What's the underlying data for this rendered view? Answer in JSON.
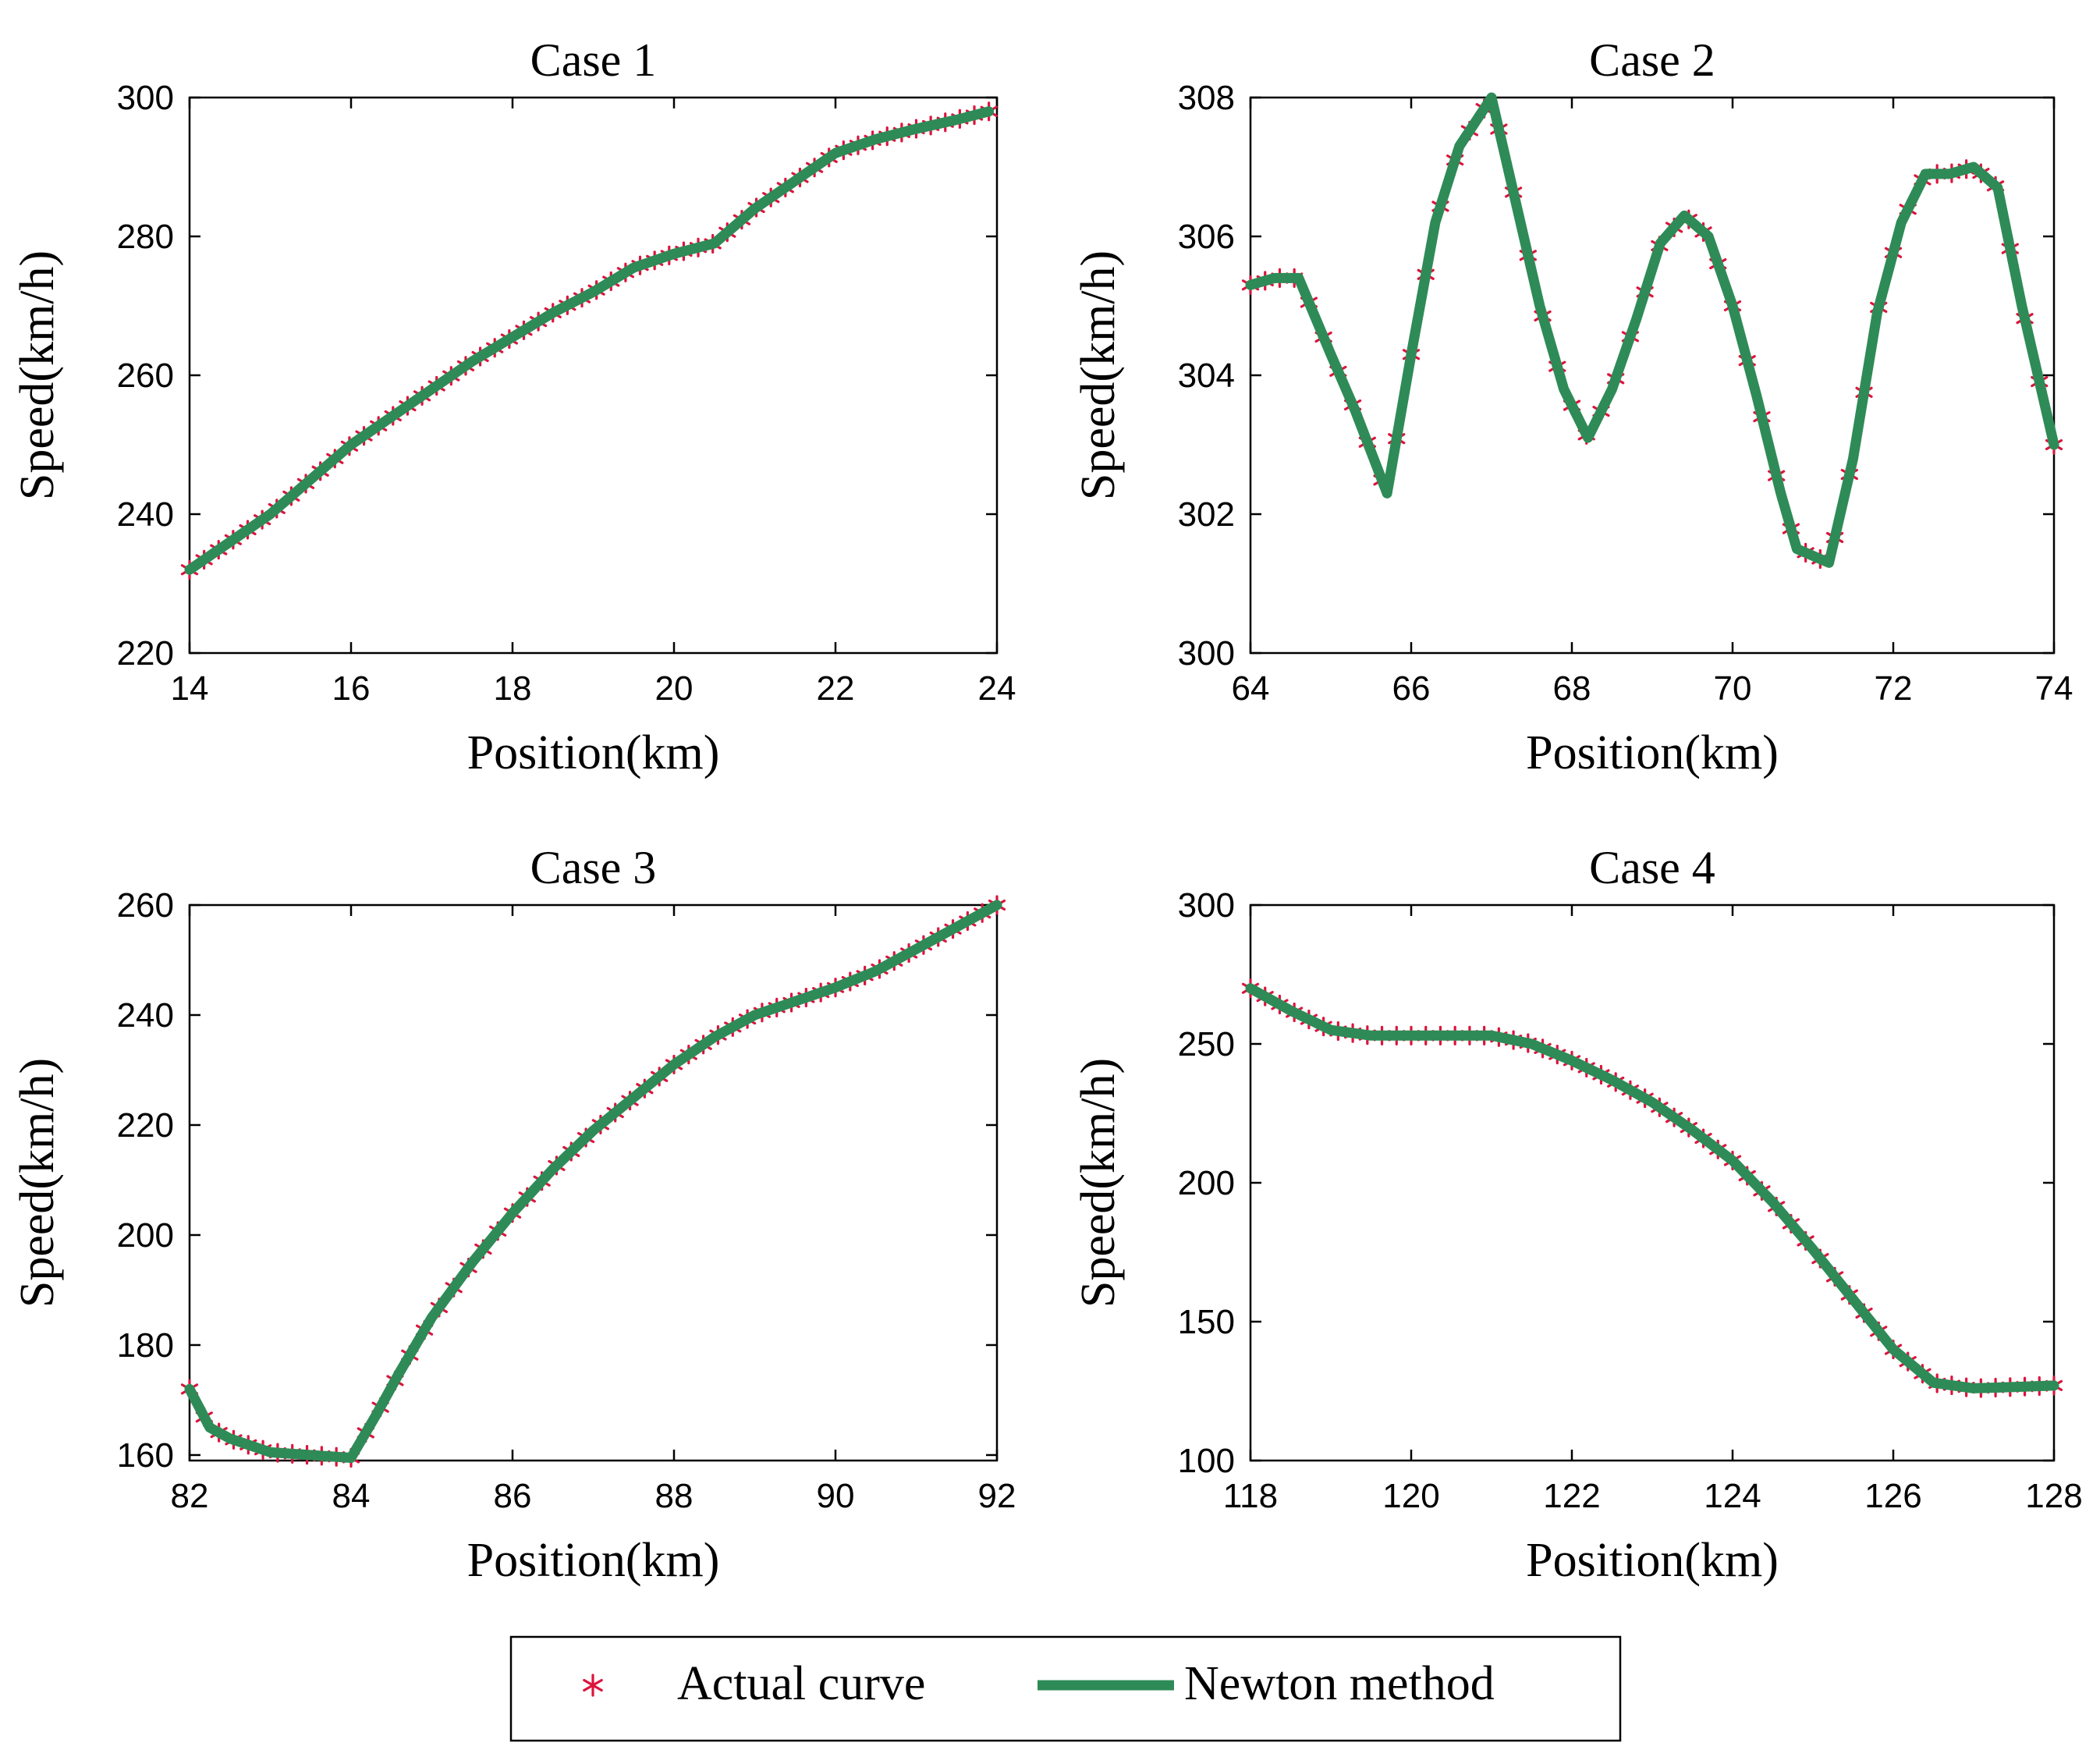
{
  "colors": {
    "actual": "#dc143c",
    "newton": "#2e8b57",
    "axes": "#000000"
  },
  "legend": {
    "actual_label": "Actual curve",
    "newton_label": "Newton method",
    "placement": "bottom-center"
  },
  "chart_data": [
    {
      "type": "line",
      "title": "Case 1",
      "xlabel": "Position(km)",
      "ylabel": "Speed(km/h)",
      "xlim": [
        14,
        24
      ],
      "ylim": [
        220,
        300
      ],
      "xticks": [
        14,
        16,
        18,
        20,
        22,
        24
      ],
      "yticks": [
        220,
        240,
        260,
        280,
        300
      ],
      "grid": false,
      "series": [
        {
          "name": "Actual curve",
          "marker": "asterisk",
          "x": [
            14,
            14.5,
            15,
            15.5,
            16,
            16.5,
            17,
            17.5,
            18,
            18.5,
            19,
            19.5,
            20,
            20.5,
            21,
            21.5,
            22,
            22.5,
            23,
            23.5,
            23.9
          ],
          "y": [
            232,
            236,
            240,
            245,
            250,
            254,
            258,
            262,
            265.5,
            269,
            272,
            275.5,
            277.5,
            279,
            284,
            288,
            292,
            294,
            295.5,
            296.8,
            298
          ]
        },
        {
          "name": "Newton method",
          "marker": "line",
          "x": [
            14,
            14.5,
            15,
            15.5,
            16,
            16.5,
            17,
            17.5,
            18,
            18.5,
            19,
            19.5,
            20,
            20.5,
            21,
            21.5,
            22,
            22.5,
            23,
            23.5,
            23.9
          ],
          "y": [
            232,
            236,
            240,
            245,
            250,
            254,
            258,
            262,
            265.5,
            269,
            272,
            275.5,
            277.5,
            279,
            284,
            288,
            292,
            294,
            295.5,
            296.8,
            298
          ]
        }
      ]
    },
    {
      "type": "line",
      "title": "Case 2",
      "xlabel": "Position(km)",
      "ylabel": "Speed(km/h)",
      "xlim": [
        64,
        74
      ],
      "ylim": [
        300,
        308
      ],
      "xticks": [
        64,
        66,
        68,
        70,
        72,
        74
      ],
      "yticks": [
        300,
        302,
        304,
        306,
        308
      ],
      "grid": false,
      "series": [
        {
          "name": "Actual curve",
          "marker": "asterisk",
          "x": [
            64,
            64.3,
            64.6,
            65.0,
            65.3,
            65.7,
            66.0,
            66.3,
            66.6,
            67.0,
            67.3,
            67.6,
            67.9,
            68.2,
            68.5,
            68.8,
            69.1,
            69.4,
            69.7,
            70.0,
            70.3,
            70.6,
            70.8,
            71.2,
            71.5,
            71.8,
            72.1,
            72.4,
            72.7,
            73.0,
            73.3,
            73.6,
            74.0
          ],
          "y": [
            305.3,
            305.4,
            305.4,
            304.3,
            303.5,
            302.3,
            304.3,
            306.2,
            307.3,
            308.0,
            306.5,
            305.0,
            303.8,
            303.1,
            303.8,
            304.8,
            305.9,
            306.3,
            306.0,
            305.0,
            303.7,
            302.3,
            301.5,
            301.3,
            302.8,
            304.9,
            306.2,
            306.9,
            306.9,
            307.0,
            306.7,
            305.0,
            303.0
          ]
        },
        {
          "name": "Newton method",
          "marker": "line",
          "x": [
            64,
            64.3,
            64.6,
            65.0,
            65.3,
            65.7,
            66.0,
            66.3,
            66.6,
            67.0,
            67.3,
            67.6,
            67.9,
            68.2,
            68.5,
            68.8,
            69.1,
            69.4,
            69.7,
            70.0,
            70.3,
            70.6,
            70.8,
            71.2,
            71.5,
            71.8,
            72.1,
            72.4,
            72.7,
            73.0,
            73.3,
            73.6,
            74.0
          ],
          "y": [
            305.3,
            305.4,
            305.4,
            304.3,
            303.5,
            302.3,
            304.3,
            306.2,
            307.3,
            308.0,
            306.5,
            305.0,
            303.8,
            303.1,
            303.8,
            304.8,
            305.9,
            306.3,
            306.0,
            305.0,
            303.7,
            302.3,
            301.5,
            301.3,
            302.8,
            304.9,
            306.2,
            306.9,
            306.9,
            307.0,
            306.7,
            305.0,
            303.0
          ]
        }
      ]
    },
    {
      "type": "line",
      "title": "Case 3",
      "xlabel": "Position(km)",
      "ylabel": "Speed(km/h)",
      "xlim": [
        82,
        92
      ],
      "ylim": [
        159,
        260
      ],
      "xticks": [
        82,
        84,
        86,
        88,
        90,
        92
      ],
      "yticks": [
        160,
        180,
        200,
        220,
        240,
        260
      ],
      "grid": false,
      "series": [
        {
          "name": "Actual curve",
          "marker": "asterisk",
          "x": [
            82,
            82.25,
            82.5,
            83,
            83.5,
            84,
            84.3,
            84.6,
            85,
            85.5,
            86,
            86.5,
            87,
            87.5,
            88,
            88.5,
            89,
            89.5,
            90,
            90.5,
            91,
            91.5,
            92
          ],
          "y": [
            172,
            165,
            163,
            160.5,
            160,
            159.5,
            167,
            175,
            185,
            195,
            204,
            212,
            219,
            225,
            231,
            236,
            240,
            242.5,
            245,
            248,
            252,
            256,
            260
          ]
        },
        {
          "name": "Newton method",
          "marker": "line",
          "x": [
            82,
            82.25,
            82.5,
            83,
            83.5,
            84,
            84.3,
            84.6,
            85,
            85.5,
            86,
            86.5,
            87,
            87.5,
            88,
            88.5,
            89,
            89.5,
            90,
            90.5,
            91,
            91.5,
            92
          ],
          "y": [
            172,
            165,
            163,
            160.5,
            160,
            159.5,
            167,
            175,
            185,
            195,
            204,
            212,
            219,
            225,
            231,
            236,
            240,
            242.5,
            245,
            248,
            252,
            256,
            260
          ]
        }
      ]
    },
    {
      "type": "line",
      "title": "Case 4",
      "xlabel": "Position(km)",
      "ylabel": "Speed(km/h)",
      "xlim": [
        118,
        128
      ],
      "ylim": [
        100,
        300
      ],
      "xticks": [
        118,
        120,
        122,
        124,
        126,
        128
      ],
      "yticks": [
        100,
        150,
        200,
        250,
        300
      ],
      "grid": false,
      "series": [
        {
          "name": "Actual curve",
          "marker": "asterisk",
          "x": [
            118,
            118.5,
            119,
            119.5,
            120,
            120.5,
            121,
            121.5,
            122,
            122.5,
            123,
            123.5,
            124,
            124.5,
            125,
            125.5,
            126,
            126.5,
            127,
            127.5,
            128
          ],
          "y": [
            270,
            262,
            255,
            253,
            253,
            253,
            253,
            250,
            244,
            237,
            229,
            219,
            208,
            193,
            176,
            158,
            140,
            128,
            126,
            126.5,
            127
          ]
        },
        {
          "name": "Newton method",
          "marker": "line",
          "x": [
            118,
            118.5,
            119,
            119.5,
            120,
            120.5,
            121,
            121.5,
            122,
            122.5,
            123,
            123.5,
            124,
            124.5,
            125,
            125.5,
            126,
            126.5,
            127,
            127.5,
            128
          ],
          "y": [
            270,
            262,
            255,
            253,
            253,
            253,
            253,
            250,
            244,
            237,
            229,
            219,
            208,
            193,
            176,
            158,
            140,
            128,
            126,
            126.5,
            127
          ]
        }
      ]
    }
  ]
}
